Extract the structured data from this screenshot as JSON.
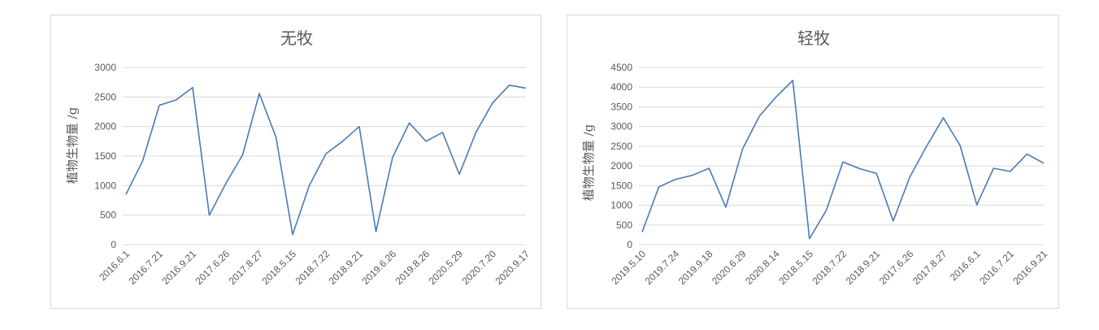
{
  "chart_data": [
    {
      "type": "line",
      "title": "无牧",
      "ylabel": "植物生物量 /g",
      "xlabel": "",
      "ylim": [
        0,
        3000
      ],
      "yticks": [
        0,
        500,
        1000,
        1500,
        2000,
        2500,
        3000
      ],
      "x_tick_labels": [
        "2016.6.1",
        "2016.7.21",
        "2016.9.21",
        "2017.6.26",
        "2017.8.27",
        "2018.5.15",
        "2018.7.22",
        "2018.9.21",
        "2019.6.26",
        "2019.8.26",
        "2020.5.29",
        "2020.7.20",
        "2020.9.17"
      ],
      "values": [
        850,
        1420,
        2360,
        2450,
        2660,
        500,
        1040,
        1520,
        2560,
        1820,
        170,
        1000,
        1540,
        1750,
        2000,
        220,
        1480,
        2060,
        1750,
        1900,
        1190,
        1900,
        2400,
        2700,
        2650
      ],
      "grid": true,
      "color": "#4a7ab5"
    },
    {
      "type": "line",
      "title": "轻牧",
      "ylabel": "植物生物量 /g",
      "xlabel": "",
      "ylim": [
        0,
        4500
      ],
      "yticks": [
        0,
        500,
        1000,
        1500,
        2000,
        2500,
        3000,
        3500,
        4000,
        4500
      ],
      "x_tick_labels": [
        "2019.5.10",
        "2019.7.24",
        "2019.9.18",
        "2020.6.29",
        "2020.8.14",
        "2018.5.15",
        "2018.7.22",
        "2018.9.21",
        "2017.6.26",
        "2017.8.27",
        "2016.6.1",
        "2016.7.21",
        "2016.9.21"
      ],
      "values": [
        320,
        1470,
        1660,
        1760,
        1940,
        950,
        2430,
        3260,
        3750,
        4170,
        150,
        870,
        2100,
        1930,
        1810,
        600,
        1720,
        2500,
        3220,
        2520,
        1010,
        1940,
        1860,
        2300,
        2070
      ],
      "grid": true,
      "color": "#4a7ab5"
    }
  ]
}
